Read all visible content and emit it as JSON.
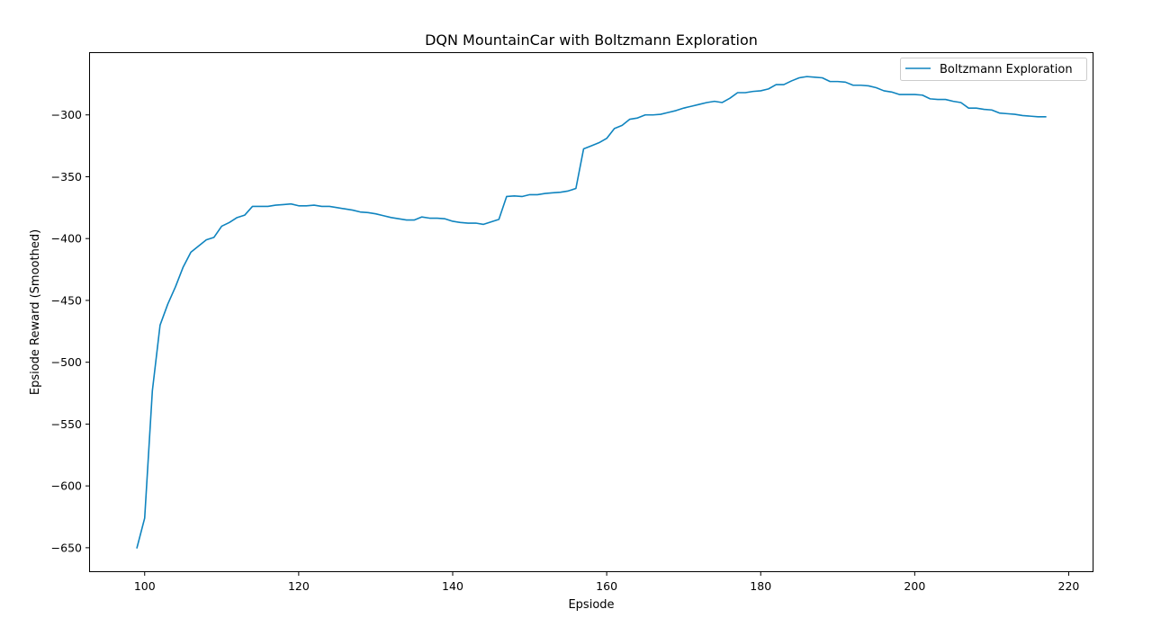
{
  "chart_data": {
    "type": "line",
    "title": "DQN MountainCar with Boltzmann Exploration",
    "xlabel": "Epsiode",
    "ylabel": "Epsiode Reward (Smoothed)",
    "xlim": [
      92.9,
      223.1
    ],
    "ylim": [
      -669,
      -250
    ],
    "xticks": [
      100,
      120,
      140,
      160,
      180,
      200,
      220
    ],
    "yticks": [
      -650,
      -600,
      -550,
      -500,
      -450,
      -400,
      -350,
      -300
    ],
    "grid": false,
    "legend_position": "top-right",
    "line_color": "#0f84bf",
    "series": [
      {
        "name": "Boltzmann Exploration",
        "x": [
          99,
          100,
          101,
          102,
          103,
          104,
          105,
          106,
          107,
          108,
          109,
          110,
          111,
          112,
          113,
          114,
          115,
          116,
          117,
          118,
          119,
          120,
          121,
          122,
          123,
          124,
          125,
          126,
          127,
          128,
          129,
          130,
          131,
          132,
          133,
          134,
          135,
          136,
          137,
          138,
          139,
          140,
          141,
          142,
          143,
          144,
          145,
          146,
          147,
          148,
          149,
          150,
          151,
          152,
          153,
          154,
          155,
          156,
          157,
          158,
          159,
          160,
          161,
          162,
          163,
          164,
          165,
          166,
          167,
          168,
          169,
          170,
          171,
          172,
          173,
          174,
          175,
          176,
          177,
          178,
          179,
          180,
          181,
          182,
          183,
          184,
          185,
          186,
          187,
          188,
          189,
          190,
          191,
          192,
          193,
          194,
          195,
          196,
          197,
          198,
          199,
          200,
          201,
          202,
          203,
          204,
          205,
          206,
          207,
          208,
          209,
          210,
          211,
          212,
          213,
          214,
          215,
          216,
          217
        ],
        "values": [
          -650,
          -626,
          -523,
          -470,
          -453,
          -439,
          -423,
          -411,
          -406,
          -401,
          -399,
          -390,
          -387,
          -383,
          -381,
          -374,
          -374,
          -374,
          -373,
          -372.5,
          -372,
          -373.5,
          -373.5,
          -373,
          -374,
          -374,
          -375,
          -376,
          -377,
          -378.5,
          -379,
          -380,
          -381.5,
          -383,
          -384,
          -385,
          -385,
          -382.5,
          -383.5,
          -383.5,
          -384,
          -386,
          -387,
          -387.5,
          -387.5,
          -388.5,
          -386.5,
          -384.5,
          -366,
          -365.5,
          -366,
          -364.5,
          -364.5,
          -363.5,
          -363,
          -362.5,
          -361.5,
          -359.5,
          -327.5,
          -325,
          -322.5,
          -319,
          -311,
          -308.5,
          -303.5,
          -302.5,
          -300,
          -300,
          -299.5,
          -298,
          -296.5,
          -294.5,
          -293,
          -291.5,
          -290,
          -289,
          -290,
          -286.5,
          -282,
          -282,
          -281,
          -280.5,
          -279,
          -275.5,
          -275.5,
          -272.5,
          -270,
          -269,
          -269.5,
          -270,
          -273,
          -273,
          -273.5,
          -276,
          -276,
          -276.5,
          -278,
          -280.5,
          -281.5,
          -283.5,
          -283.5,
          -283.5,
          -284,
          -287,
          -287.5,
          -287.5,
          -289,
          -290,
          -294.5,
          -294.5,
          -295.5,
          -296,
          -298.5,
          -299,
          -299.5,
          -300.5,
          -301,
          -301.5,
          -301.5
        ]
      }
    ]
  }
}
